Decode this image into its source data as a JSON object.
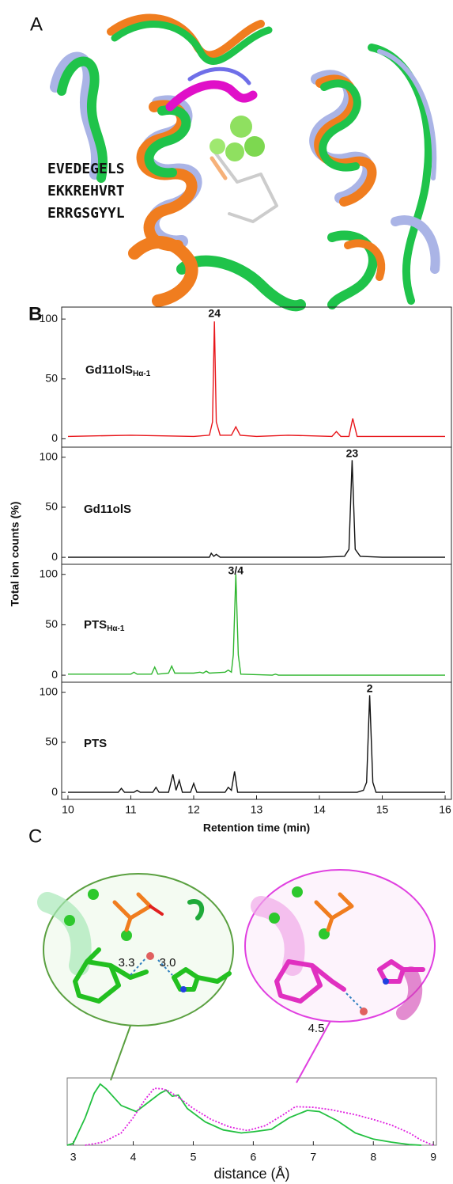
{
  "panel_labels": [
    "A",
    "B",
    "C"
  ],
  "panel_a": {
    "sequences": [
      {
        "text": "EVEDEGELS",
        "color": "#2f8a2f"
      },
      {
        "text": "EKKREHVRT",
        "color": "#6f9de8"
      },
      {
        "text": "ERRGSGYYL",
        "color": "#f07d20"
      }
    ]
  },
  "panel_c": {
    "distances": [
      "3.3",
      "3.0",
      "4.5"
    ]
  },
  "chart_data": [
    {
      "type": "line",
      "ylabel": "Total ion counts (%)",
      "xlim": [
        9.9,
        16.1
      ],
      "ylim": [
        -7,
        110
      ],
      "yticks": [
        0,
        50,
        100
      ],
      "annotations": [
        {
          "x": 12.33,
          "text": "24"
        }
      ],
      "series": [
        {
          "name": "Gd11olS",
          "name_sub": "Hα-1",
          "color": "#e8161b",
          "x": [
            10,
            11,
            12,
            12.25,
            12.3,
            12.33,
            12.36,
            12.42,
            12.6,
            12.67,
            12.74,
            13,
            13.5,
            14.2,
            14.27,
            14.34,
            14.47,
            14.53,
            14.6,
            15,
            16
          ],
          "values": [
            2,
            3,
            2,
            3,
            14,
            98,
            14,
            3,
            3,
            10,
            3,
            2,
            3,
            2,
            6,
            2,
            2,
            17,
            2,
            2,
            2
          ]
        }
      ]
    },
    {
      "type": "line",
      "xlim": [
        9.9,
        16.1
      ],
      "ylim": [
        -7,
        110
      ],
      "yticks": [
        0,
        50,
        100
      ],
      "annotations": [
        {
          "x": 14.52,
          "text": "23"
        }
      ],
      "series": [
        {
          "name": "Gd11olS",
          "color": "#111111",
          "x": [
            10,
            12,
            12.25,
            12.28,
            12.32,
            12.36,
            12.42,
            12.6,
            14,
            14.4,
            14.47,
            14.52,
            14.57,
            14.65,
            15,
            16
          ],
          "values": [
            0,
            0,
            0,
            4,
            1,
            3,
            0,
            0,
            0,
            1,
            8,
            97,
            8,
            1,
            0,
            0
          ]
        }
      ]
    },
    {
      "type": "line",
      "xlim": [
        9.9,
        16.1
      ],
      "ylim": [
        -7,
        110
      ],
      "yticks": [
        0,
        50,
        100
      ],
      "annotations": [
        {
          "x": 12.67,
          "text": "3/4"
        }
      ],
      "series": [
        {
          "name": "PTS",
          "name_sub": "Hα-1",
          "color": "#2db52d",
          "x": [
            10,
            11,
            11.05,
            11.1,
            11.33,
            11.38,
            11.43,
            11.6,
            11.65,
            11.7,
            12,
            12.1,
            12.15,
            12.2,
            12.25,
            12.5,
            12.55,
            12.6,
            12.63,
            12.67,
            12.71,
            12.75,
            13.25,
            13.3,
            13.35,
            16
          ],
          "values": [
            1,
            1,
            3,
            1,
            1,
            8,
            1,
            2,
            9,
            2,
            2,
            3,
            2,
            4,
            2,
            3,
            5,
            3,
            20,
            100,
            20,
            1,
            0,
            1,
            0,
            0
          ]
        }
      ]
    },
    {
      "type": "line",
      "xlabel": "Retention time (min)",
      "xlim": [
        9.9,
        16.1
      ],
      "xticks": [
        10,
        11,
        12,
        13,
        14,
        15,
        16
      ],
      "ylim": [
        -7,
        110
      ],
      "yticks": [
        0,
        50,
        100
      ],
      "annotations": [
        {
          "x": 14.8,
          "text": "2"
        }
      ],
      "series": [
        {
          "name": "PTS",
          "color": "#111111",
          "x": [
            10,
            10.8,
            10.85,
            10.9,
            11.05,
            11.1,
            11.15,
            11.35,
            11.4,
            11.45,
            11.6,
            11.67,
            11.72,
            11.77,
            11.82,
            11.95,
            12.0,
            12.05,
            12.5,
            12.55,
            12.6,
            12.65,
            12.7,
            14.6,
            14.7,
            14.75,
            14.8,
            14.85,
            14.9,
            16
          ],
          "values": [
            0,
            0,
            4,
            0,
            0,
            2,
            0,
            0,
            5,
            0,
            0,
            18,
            2,
            12,
            0,
            0,
            9,
            0,
            0,
            5,
            2,
            21,
            0,
            0,
            2,
            10,
            97,
            10,
            0,
            0
          ]
        }
      ]
    },
    {
      "type": "line",
      "xlabel": "distance (Å)",
      "xlim": [
        2.9,
        9.05
      ],
      "xticks": [
        3,
        4,
        5,
        6,
        7,
        8,
        9
      ],
      "ylim": [
        0,
        1.1
      ],
      "series": [
        {
          "color": "#22c040",
          "dash": false,
          "x": [
            2.9,
            3.0,
            3.2,
            3.35,
            3.45,
            3.55,
            3.8,
            4.05,
            4.25,
            4.45,
            4.55,
            4.65,
            4.75,
            4.9,
            5.2,
            5.5,
            5.8,
            6.0,
            6.3,
            6.6,
            6.9,
            7.1,
            7.4,
            7.7,
            8.0,
            8.3,
            8.6,
            8.8
          ],
          "values": [
            0,
            0.03,
            0.45,
            0.85,
            1.0,
            0.92,
            0.65,
            0.55,
            0.7,
            0.85,
            0.9,
            0.8,
            0.82,
            0.6,
            0.38,
            0.25,
            0.2,
            0.22,
            0.26,
            0.45,
            0.57,
            0.55,
            0.4,
            0.2,
            0.1,
            0.05,
            0.01,
            0
          ]
        },
        {
          "color": "#e020e0",
          "dash": true,
          "x": [
            3.2,
            3.5,
            3.8,
            4.0,
            4.2,
            4.35,
            4.5,
            4.6,
            4.8,
            5.0,
            5.3,
            5.6,
            5.9,
            6.2,
            6.5,
            6.7,
            7.0,
            7.3,
            7.7,
            8.0,
            8.3,
            8.6,
            8.8,
            9.0
          ],
          "values": [
            0,
            0.05,
            0.2,
            0.45,
            0.75,
            0.93,
            0.92,
            0.88,
            0.75,
            0.6,
            0.42,
            0.3,
            0.24,
            0.32,
            0.5,
            0.63,
            0.62,
            0.58,
            0.5,
            0.42,
            0.33,
            0.2,
            0.08,
            0
          ]
        }
      ]
    }
  ]
}
